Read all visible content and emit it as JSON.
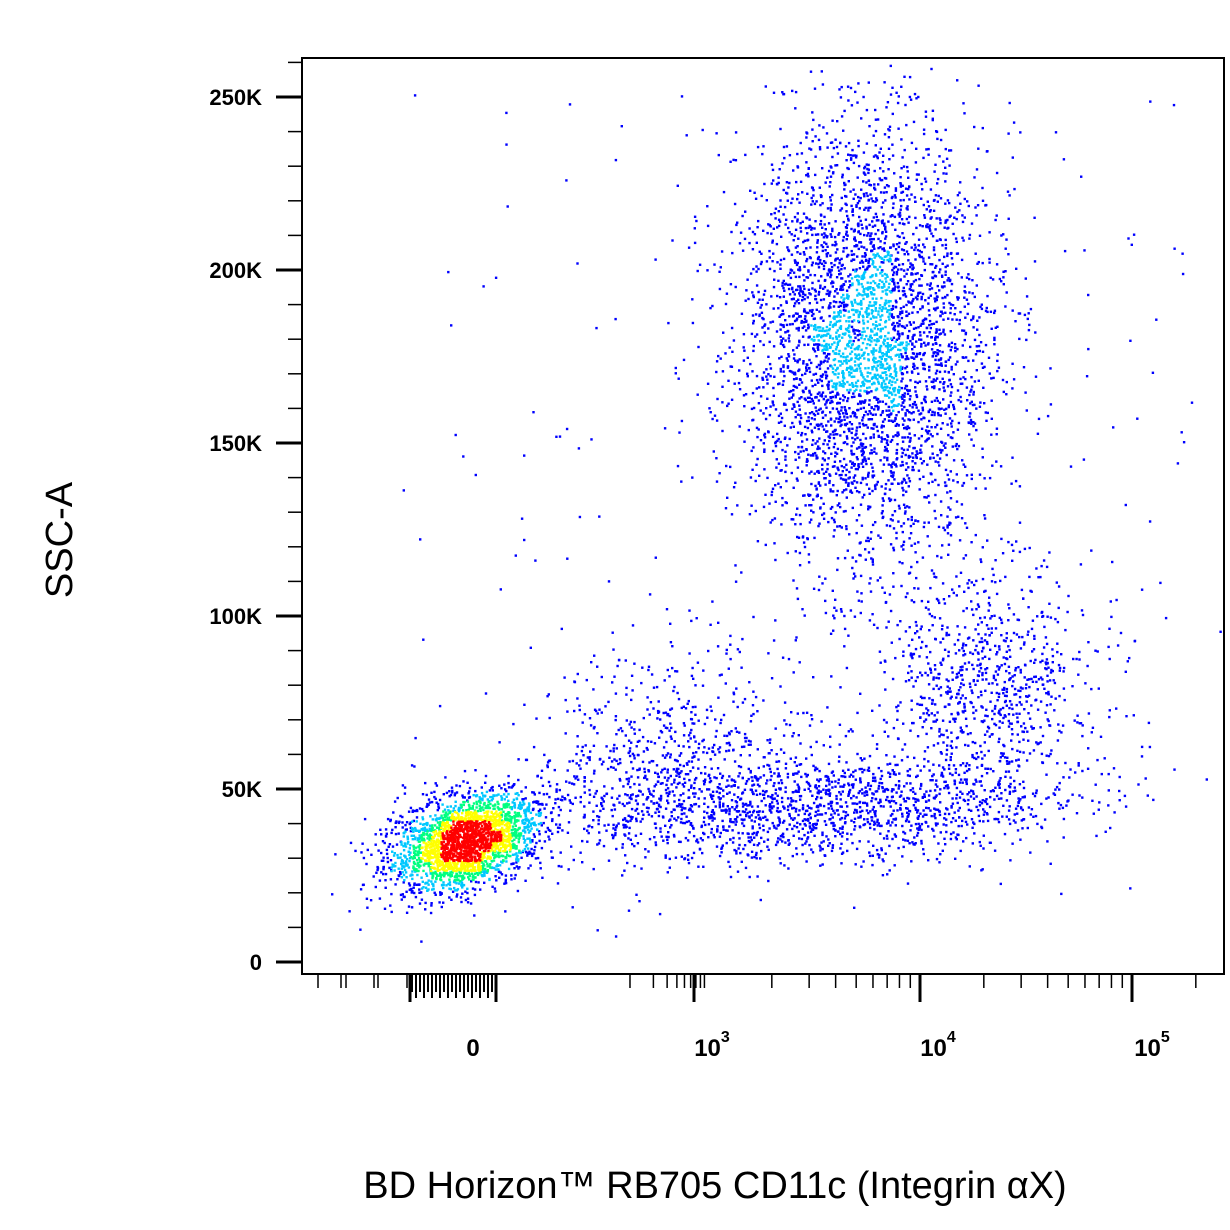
{
  "chart_data": {
    "type": "scatter",
    "style": "density flow cytometry dot plot",
    "xlabel": "BD Horizon™ RB705 CD11c (Integrin αX)",
    "ylabel": "SSC-A",
    "x_scale": "biexponential (logicle)",
    "x_ticks": [
      {
        "label": "0",
        "value": 0
      },
      {
        "label": "10",
        "exp": "3",
        "value": 1000
      },
      {
        "label": "10",
        "exp": "4",
        "value": 10000
      },
      {
        "label": "10",
        "exp": "5",
        "value": 100000
      }
    ],
    "y_ticks": [
      {
        "label": "0",
        "value": 0
      },
      {
        "label": "50K",
        "value": 50000
      },
      {
        "label": "100K",
        "value": 100000
      },
      {
        "label": "150K",
        "value": 150000
      },
      {
        "label": "200K",
        "value": 200000
      },
      {
        "label": "250K",
        "value": 250000
      }
    ],
    "ylim": [
      0,
      262144
    ],
    "color_scale": [
      "#0000ff",
      "#00c8ff",
      "#00ff80",
      "#ffff00",
      "#ff0000"
    ],
    "populations": [
      {
        "cx": -30,
        "cy": 35000,
        "count": 2600
      },
      {
        "cx": 5500,
        "cy": 180000,
        "count": 4000
      },
      {
        "cx": 3000,
        "cy": 45000,
        "count": 1500
      },
      {
        "cx": 20000,
        "cy": 80000,
        "count": 900
      },
      {
        "cx": 300,
        "cy": 60000,
        "count": 600
      }
    ]
  }
}
